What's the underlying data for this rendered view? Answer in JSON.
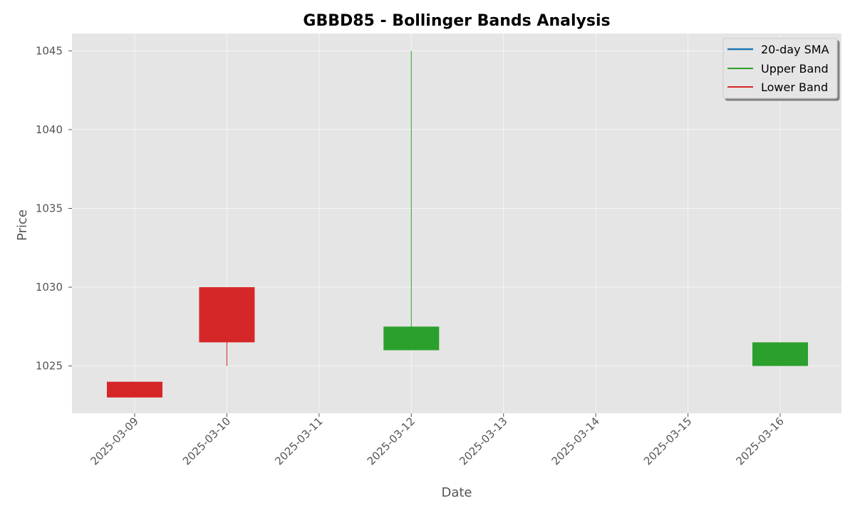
{
  "chart_data": {
    "type": "candlestick",
    "title": "GBBD85 - Bollinger Bands Analysis",
    "xlabel": "Date",
    "ylabel": "Price",
    "x_ticks": [
      "2025-03-09",
      "2025-03-10",
      "2025-03-11",
      "2025-03-12",
      "2025-03-13",
      "2025-03-14",
      "2025-03-15",
      "2025-03-16"
    ],
    "y_ticks": [
      1025,
      1030,
      1035,
      1040,
      1045
    ],
    "ylim": [
      1022.0,
      1046.1
    ],
    "grid": true,
    "legend_position": "top-right",
    "legend": [
      {
        "label": "20-day SMA",
        "color": "#1f77b4"
      },
      {
        "label": "Upper Band",
        "color": "#2ca02c"
      },
      {
        "label": "Lower Band",
        "color": "#d62728"
      }
    ],
    "candles": [
      {
        "date": "2025-03-09",
        "open": 1024.0,
        "high": 1024.0,
        "low": 1023.0,
        "close": 1023.0
      },
      {
        "date": "2025-03-10",
        "open": 1030.0,
        "high": 1030.0,
        "low": 1025.0,
        "close": 1026.5
      },
      {
        "date": "2025-03-12",
        "open": 1026.0,
        "high": 1045.0,
        "low": 1026.0,
        "close": 1027.5
      },
      {
        "date": "2025-03-16",
        "open": 1025.0,
        "high": 1026.5,
        "low": 1025.0,
        "close": 1026.5
      }
    ],
    "colors": {
      "up": "#2ca02c",
      "down": "#d62728",
      "plot_background": "#e5e5e5",
      "grid": "#ffffff"
    }
  }
}
